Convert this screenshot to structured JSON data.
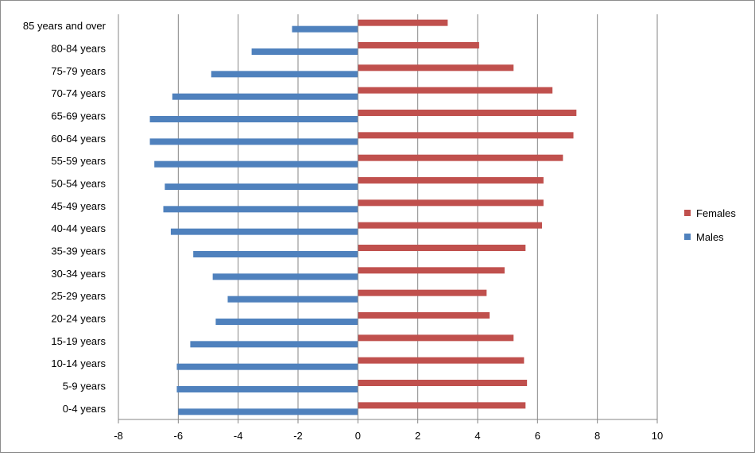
{
  "chart_data": {
    "type": "bar",
    "orientation": "horizontal",
    "categories": [
      "0-4 years",
      "5-9 years",
      "10-14 years",
      "15-19 years",
      "20-24 years",
      "25-29 years",
      "30-34 years",
      "35-39 years",
      "40-44 years",
      "45-49 years",
      "50-54 years",
      "55-59 years",
      "60-64 years",
      "65-69 years",
      "70-74 years",
      "75-79 years",
      "80-84 years",
      "85 years and over"
    ],
    "series": [
      {
        "name": "Females",
        "color": "#c0504d",
        "values": [
          5.6,
          5.65,
          5.55,
          5.2,
          4.4,
          4.3,
          4.9,
          5.6,
          6.15,
          6.2,
          6.2,
          6.85,
          7.2,
          7.3,
          6.5,
          5.2,
          4.05,
          3.0
        ]
      },
      {
        "name": "Males",
        "color": "#4f81bd",
        "values": [
          -6.0,
          -6.05,
          -6.05,
          -5.6,
          -4.75,
          -4.35,
          -4.85,
          -5.5,
          -6.25,
          -6.5,
          -6.45,
          -6.8,
          -6.95,
          -6.95,
          -6.2,
          -4.9,
          -3.55,
          -2.2
        ]
      }
    ],
    "x_ticks": [
      "-8",
      "-6",
      "-4",
      "-2",
      "0",
      "2",
      "4",
      "6",
      "8",
      "10"
    ],
    "xlim": [
      -8,
      10
    ],
    "grid": "vertical",
    "legend_position": "right"
  }
}
